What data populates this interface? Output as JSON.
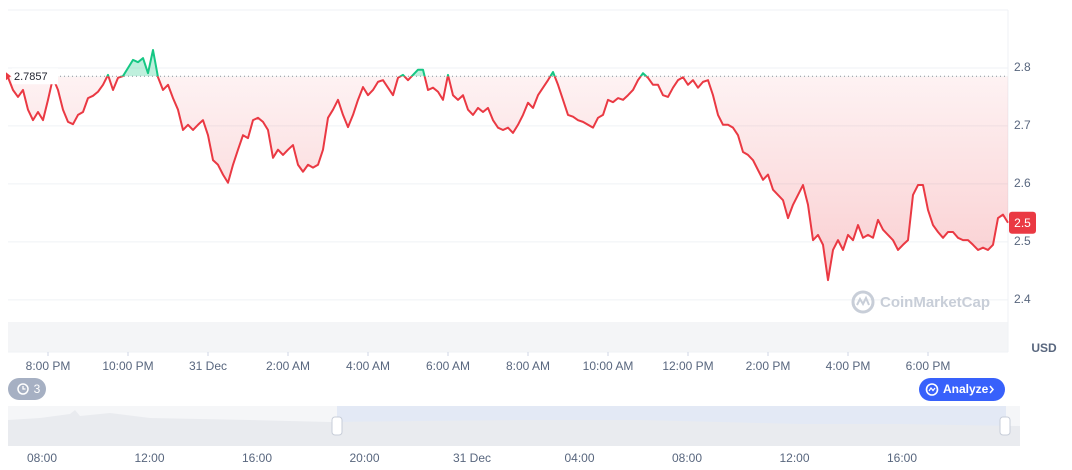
{
  "chart_data": {
    "type": "line",
    "baseline": 2.7857,
    "last_price": 2.5,
    "currency": "USD",
    "color_down": "#ea3943",
    "color_up": "#16c784",
    "grid": true,
    "xlim": [
      19,
      44
    ],
    "xticks": [
      {
        "value": 20,
        "label": "8:00 PM"
      },
      {
        "value": 22,
        "label": "10:00 PM"
      },
      {
        "value": 24,
        "label": "31 Dec"
      },
      {
        "value": 26,
        "label": "2:00 AM"
      },
      {
        "value": 28,
        "label": "4:00 AM"
      },
      {
        "value": 30,
        "label": "6:00 AM"
      },
      {
        "value": 32,
        "label": "8:00 AM"
      },
      {
        "value": 34,
        "label": "10:00 AM"
      },
      {
        "value": 36,
        "label": "12:00 PM"
      },
      {
        "value": 38,
        "label": "2:00 PM"
      },
      {
        "value": 40,
        "label": "4:00 PM"
      },
      {
        "value": 42,
        "label": "6:00 PM"
      }
    ],
    "ylim": [
      2.31,
      2.9
    ],
    "yticks": [
      2.4,
      2.5,
      2.6,
      2.7,
      2.8
    ],
    "x": [
      19,
      19.125,
      19.25,
      19.375,
      19.5,
      19.625,
      19.75,
      19.875,
      20,
      20.125,
      20.25,
      20.375,
      20.5,
      20.625,
      20.75,
      20.875,
      21,
      21.125,
      21.25,
      21.375,
      21.5,
      21.625,
      21.75,
      21.875,
      22,
      22.125,
      22.25,
      22.375,
      22.5,
      22.625,
      22.75,
      22.875,
      23,
      23.125,
      23.25,
      23.375,
      23.5,
      23.625,
      23.75,
      23.875,
      24,
      24.125,
      24.25,
      24.375,
      24.5,
      24.625,
      24.75,
      24.875,
      25,
      25.125,
      25.25,
      25.375,
      25.5,
      25.625,
      25.75,
      25.875,
      26,
      26.125,
      26.25,
      26.375,
      26.5,
      26.625,
      26.75,
      26.875,
      27,
      27.125,
      27.25,
      27.375,
      27.5,
      27.625,
      27.75,
      27.875,
      28,
      28.125,
      28.25,
      28.375,
      28.5,
      28.625,
      28.75,
      28.875,
      29,
      29.125,
      29.25,
      29.375,
      29.5,
      29.625,
      29.75,
      29.875,
      30,
      30.125,
      30.25,
      30.375,
      30.5,
      30.625,
      30.75,
      30.875,
      31,
      31.125,
      31.25,
      31.375,
      31.5,
      31.625,
      31.75,
      31.875,
      32,
      32.125,
      32.25,
      32.375,
      32.5,
      32.625,
      32.75,
      32.875,
      33,
      33.125,
      33.25,
      33.375,
      33.5,
      33.625,
      33.75,
      33.875,
      34,
      34.125,
      34.25,
      34.375,
      34.5,
      34.625,
      34.75,
      34.875,
      35,
      35.125,
      35.25,
      35.375,
      35.5,
      35.625,
      35.75,
      35.875,
      36,
      36.125,
      36.25,
      36.375,
      36.5,
      36.625,
      36.75,
      36.875,
      37,
      37.125,
      37.25,
      37.375,
      37.5,
      37.625,
      37.75,
      37.875,
      38,
      38.125,
      38.25,
      38.375,
      38.5,
      38.625,
      38.75,
      38.875,
      39,
      39.125,
      39.25,
      39.375,
      39.5,
      39.625,
      39.75,
      39.875,
      40,
      40.125,
      40.25,
      40.375,
      40.5,
      40.625,
      40.75,
      40.875,
      41,
      41.125,
      41.25,
      41.375,
      41.5,
      41.625,
      41.75,
      41.875,
      42,
      42.125,
      42.25,
      42.375,
      42.5,
      42.625,
      42.75,
      42.875,
      43,
      43.125,
      43.25,
      43.375,
      43.5,
      43.625,
      43.75,
      43.875,
      44
    ],
    "values": [
      2.784,
      2.762,
      2.75,
      2.762,
      2.728,
      2.71,
      2.724,
      2.71,
      2.745,
      2.783,
      2.762,
      2.728,
      2.707,
      2.703,
      2.719,
      2.724,
      2.748,
      2.752,
      2.759,
      2.771,
      2.788,
      2.762,
      2.783,
      2.786,
      2.8,
      2.814,
      2.81,
      2.817,
      2.791,
      2.831,
      2.784,
      2.762,
      2.771,
      2.748,
      2.728,
      2.693,
      2.702,
      2.693,
      2.702,
      2.71,
      2.684,
      2.641,
      2.633,
      2.616,
      2.602,
      2.633,
      2.659,
      2.684,
      2.679,
      2.71,
      2.714,
      2.707,
      2.693,
      2.645,
      2.659,
      2.65,
      2.659,
      2.667,
      2.633,
      2.621,
      2.633,
      2.628,
      2.633,
      2.659,
      2.714,
      2.728,
      2.745,
      2.719,
      2.698,
      2.719,
      2.745,
      2.767,
      2.753,
      2.762,
      2.776,
      2.779,
      2.766,
      2.753,
      2.783,
      2.788,
      2.779,
      2.788,
      2.797,
      2.797,
      2.762,
      2.766,
      2.759,
      2.745,
      2.788,
      2.753,
      2.745,
      2.753,
      2.728,
      2.719,
      2.731,
      2.724,
      2.731,
      2.71,
      2.697,
      2.693,
      2.697,
      2.688,
      2.702,
      2.719,
      2.74,
      2.731,
      2.753,
      2.766,
      2.779,
      2.793,
      2.771,
      2.745,
      2.719,
      2.716,
      2.71,
      2.707,
      2.702,
      2.697,
      2.714,
      2.719,
      2.745,
      2.741,
      2.748,
      2.745,
      2.753,
      2.762,
      2.779,
      2.791,
      2.783,
      2.771,
      2.771,
      2.753,
      2.75,
      2.766,
      2.779,
      2.784,
      2.771,
      2.779,
      2.766,
      2.776,
      2.779,
      2.753,
      2.719,
      2.702,
      2.702,
      2.697,
      2.684,
      2.655,
      2.65,
      2.641,
      2.624,
      2.607,
      2.616,
      2.59,
      2.581,
      2.572,
      2.541,
      2.564,
      2.581,
      2.598,
      2.564,
      2.503,
      2.512,
      2.495,
      2.434,
      2.486,
      2.503,
      2.486,
      2.512,
      2.503,
      2.529,
      2.507,
      2.512,
      2.507,
      2.538,
      2.521,
      2.512,
      2.503,
      2.486,
      2.495,
      2.503,
      2.581,
      2.598,
      2.598,
      2.555,
      2.529,
      2.517,
      2.507,
      2.517,
      2.517,
      2.507,
      2.503,
      2.503,
      2.495,
      2.486,
      2.49,
      2.486,
      2.495,
      2.541,
      2.547,
      2.533
    ]
  },
  "ui": {
    "badge": "3",
    "button": "Analyze",
    "watermark": "CoinMarketCap"
  },
  "navigator": {
    "labels": [
      "08:00",
      "12:00",
      "16:00",
      "20:00",
      "31 Dec",
      "04:00",
      "08:00",
      "12:00",
      "16:00"
    ]
  }
}
